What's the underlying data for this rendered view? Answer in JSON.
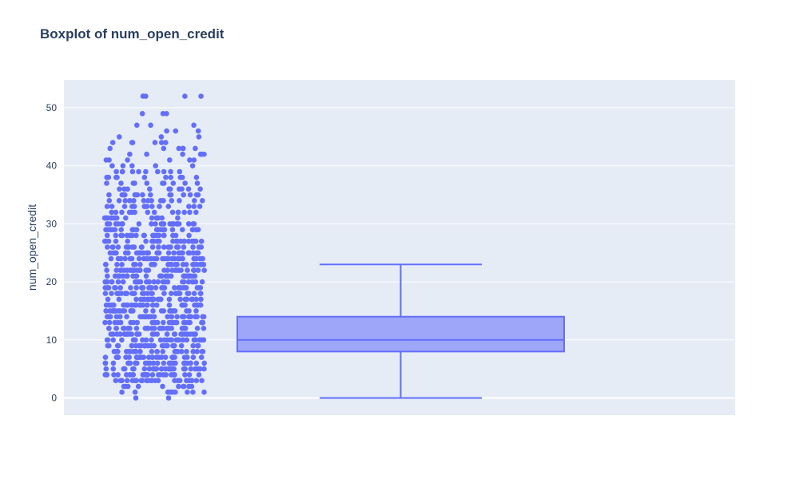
{
  "chart_data": {
    "type": "box",
    "title": "Boxplot of num_open_credit",
    "xlabel": "",
    "ylabel": "num_open_credit",
    "ylim": [
      -3,
      55
    ],
    "y_ticks": [
      0,
      10,
      20,
      30,
      40,
      50
    ],
    "grid": true,
    "legend": "none",
    "box": {
      "min": 0,
      "q1": 8,
      "median": 10,
      "q3": 14,
      "upper_fence": 23
    },
    "points_range": [
      0,
      52
    ],
    "outliers": [
      24,
      25,
      26,
      27,
      28,
      29,
      30,
      31,
      32,
      33,
      34,
      35,
      36,
      37,
      38,
      39,
      40,
      41,
      42,
      43,
      44,
      45,
      46,
      47,
      49,
      52
    ],
    "colors": {
      "marker": "#636efa",
      "box_fill": "rgba(99,110,250,0.55)",
      "box_line": "#636efa",
      "plot_bg": "#e5ecf6",
      "grid": "#ffffff"
    }
  }
}
